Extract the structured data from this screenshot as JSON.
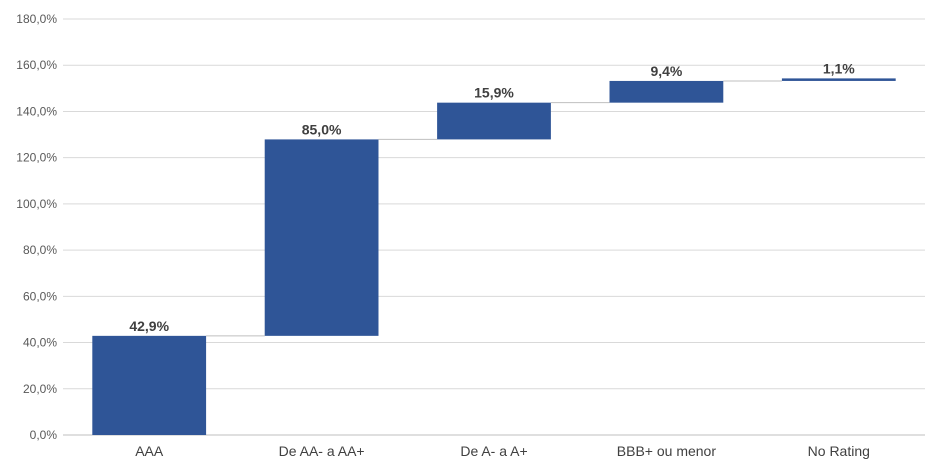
{
  "chart_data": {
    "type": "bar",
    "subtype": "waterfall",
    "categories": [
      "AAA",
      "De AA- a AA+",
      "De A- a A+",
      "BBB+ ou menor",
      "No Rating"
    ],
    "values": [
      42.9,
      85.0,
      15.9,
      9.4,
      1.1
    ],
    "data_labels": [
      "42,9%",
      "85,0%",
      "15,9%",
      "9,4%",
      "1,1%"
    ],
    "y_ticks": [
      0,
      20,
      40,
      60,
      80,
      100,
      120,
      140,
      160,
      180
    ],
    "y_tick_labels": [
      "0,0%",
      "20,0%",
      "40,0%",
      "60,0%",
      "80,0%",
      "100,0%",
      "120,0%",
      "140,0%",
      "160,0%",
      "180,0%"
    ],
    "ylim": [
      0,
      180
    ],
    "grid": true,
    "legend": "none",
    "bar_color": "#2f5597",
    "title": "",
    "xlabel": "",
    "ylabel": ""
  }
}
